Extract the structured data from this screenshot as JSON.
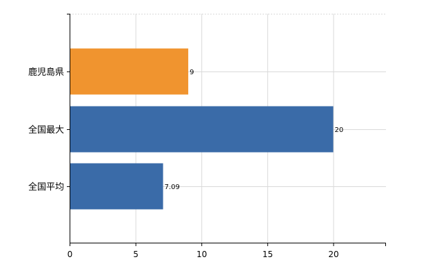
{
  "chart_data": {
    "type": "bar",
    "orientation": "horizontal",
    "categories": [
      "鹿児島県",
      "全国最大",
      "全国平均"
    ],
    "values": [
      9,
      20,
      7.09
    ],
    "data_labels": [
      "9",
      "20",
      "7.09"
    ],
    "bar_colors": [
      "#f0942f",
      "#3a6ba8",
      "#3a6ba8"
    ],
    "xlim": [
      0,
      24
    ],
    "x_ticks": [
      0,
      5,
      10,
      15,
      20
    ],
    "x_tick_labels": [
      "0",
      "5",
      "10",
      "15",
      "20"
    ],
    "title": "",
    "xlabel": "",
    "ylabel": "",
    "grid": true,
    "legend": "none"
  },
  "colors": {
    "grid": "#d9d9d9",
    "axis": "#000000",
    "text": "#000000"
  }
}
